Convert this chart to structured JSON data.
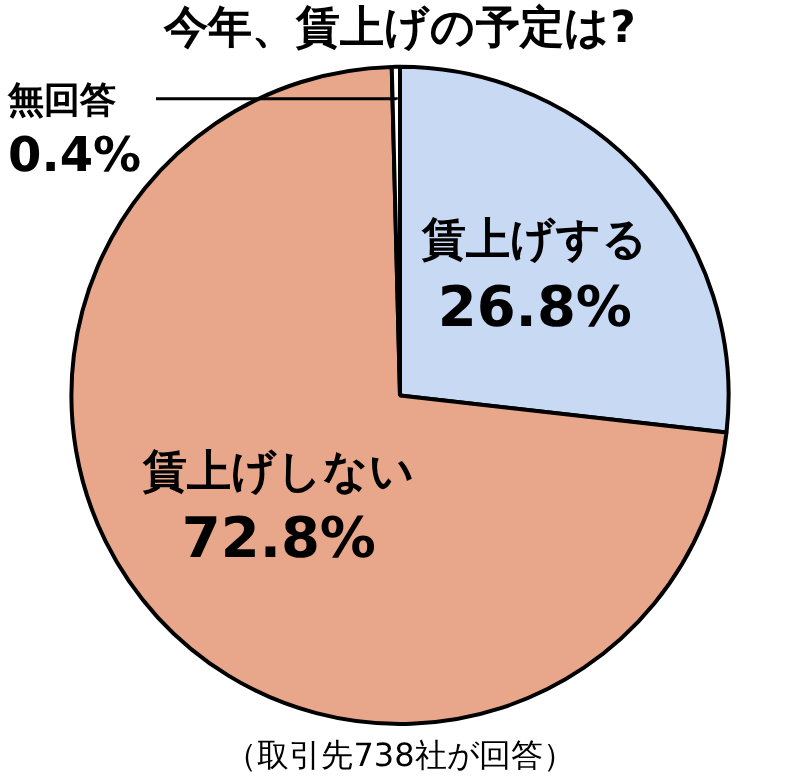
{
  "chart_data": {
    "type": "pie",
    "title": "今年、賃上げの予定は?",
    "categories": [
      "賃上げする",
      "賃上げしない",
      "無回答"
    ],
    "values": [
      26.8,
      72.8,
      0.4
    ],
    "value_labels": [
      "26.8%",
      "72.8%",
      "0.4%"
    ],
    "colors": [
      "#c8d9f4",
      "#e8a68b",
      "#ffffff"
    ],
    "annotations": [
      "（取引先738社が回答）"
    ]
  }
}
